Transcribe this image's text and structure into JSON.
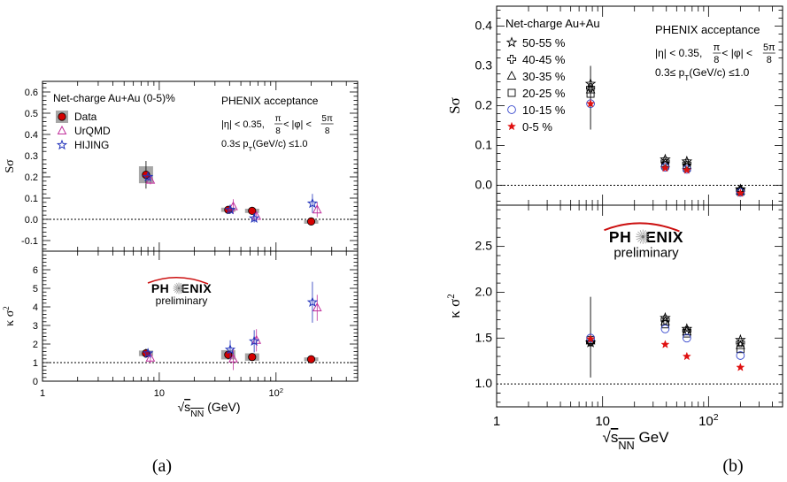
{
  "chart_data": [
    {
      "type": "scatter",
      "panel_label": "(a)",
      "x_scale": "log",
      "xlim": [
        1,
        500
      ],
      "xlabel": {
        "prefix": "√",
        "base": "s",
        "sub": "NN",
        "suffix": " (GeV)"
      },
      "x_tick_labels": [
        {
          "x": 1,
          "label": "1"
        },
        {
          "x": 10,
          "label": "10"
        },
        {
          "x": 100,
          "label": "10",
          "sup": "2"
        }
      ],
      "legend": {
        "title": "Net-charge Au+Au (0-5)%",
        "entries": [
          "Data",
          "UrQMD",
          "HIJING"
        ]
      },
      "acceptance": {
        "title": "PHENIX acceptance",
        "eta_cut": "|η| < 0.35,",
        "phi_cut": {
          "num1": "π",
          "den1": "8",
          "mid": " < |φ| < ",
          "num2": "5π",
          "den2": "8"
        },
        "pt_cut": {
          "pre": "0.3≤ p",
          "sub": "T",
          "post": "(GeV/c) ≤1.0"
        }
      },
      "logo": {
        "text_left": "PH",
        "text_right": "ENIX",
        "subtitle": "preliminary"
      },
      "panels": [
        {
          "id": "ssigma",
          "ylabel": "Sσ",
          "ylim": [
            -0.15,
            0.65
          ],
          "yticks": [
            -0.1,
            0,
            0.1,
            0.2,
            0.3,
            0.4,
            0.5,
            0.6
          ],
          "ytick_labels": [
            "-0.1",
            "0.0",
            "0.1",
            "0.2",
            "0.3",
            "0.4",
            "0.5",
            "0.6"
          ],
          "reference_line": 0,
          "series": [
            {
              "name": "Data",
              "marker": "circle",
              "color": "#d40000",
              "points": [
                {
                  "x": 7.7,
                  "y": 0.21,
                  "err": 0.065,
                  "sys": 0.04
                },
                {
                  "x": 39,
                  "y": 0.045,
                  "err": 0.01,
                  "sys": 0.01
                },
                {
                  "x": 62.4,
                  "y": 0.04,
                  "err": 0.012,
                  "sys": 0.01
                },
                {
                  "x": 200,
                  "y": -0.01,
                  "err": 0.006,
                  "sys": 0.006
                }
              ]
            },
            {
              "name": "UrQMD",
              "marker": "triangle",
              "color": "#c0309c",
              "points": [
                {
                  "x": 8.4,
                  "y": 0.185,
                  "err": 0.02
                },
                {
                  "x": 43,
                  "y": 0.06,
                  "err": 0.035
                },
                {
                  "x": 68,
                  "y": 0.015,
                  "err": 0.025
                },
                {
                  "x": 225,
                  "y": 0.045,
                  "err": 0.035
                }
              ]
            },
            {
              "name": "HIJING",
              "marker": "star",
              "color": "#2233bb",
              "points": [
                {
                  "x": 8.0,
                  "y": 0.2,
                  "err": 0.02
                },
                {
                  "x": 40.5,
                  "y": 0.045,
                  "err": 0.02
                },
                {
                  "x": 65,
                  "y": 0.005,
                  "err": 0.02
                },
                {
                  "x": 205,
                  "y": 0.075,
                  "err": 0.045
                }
              ]
            }
          ]
        },
        {
          "id": "kappasigma2",
          "ylabel": "κ σ²",
          "ylim": [
            0,
            7
          ],
          "yticks": [
            0,
            1,
            2,
            3,
            4,
            5,
            6
          ],
          "ytick_labels": [
            "0",
            "1",
            "2",
            "3",
            "4",
            "5",
            "6"
          ],
          "reference_line": 1,
          "series": [
            {
              "name": "Data",
              "marker": "circle",
              "color": "#d40000",
              "points": [
                {
                  "x": 7.7,
                  "y": 1.5,
                  "err": 0.25,
                  "sys": 0.15
                },
                {
                  "x": 39,
                  "y": 1.42,
                  "err": 0.25,
                  "sys": 0.25
                },
                {
                  "x": 62.4,
                  "y": 1.3,
                  "err": 0.12,
                  "sys": 0.2
                },
                {
                  "x": 200,
                  "y": 1.18,
                  "err": 0.08,
                  "sys": 0.1
                }
              ]
            },
            {
              "name": "UrQMD",
              "marker": "triangle",
              "color": "#c0309c",
              "points": [
                {
                  "x": 8.4,
                  "y": 1.25,
                  "err": 0.3
                },
                {
                  "x": 43,
                  "y": 1.2,
                  "err": 0.6
                },
                {
                  "x": 68,
                  "y": 2.2,
                  "err": 0.6
                },
                {
                  "x": 225,
                  "y": 3.95,
                  "err": 0.7
                }
              ]
            },
            {
              "name": "HIJING",
              "marker": "star",
              "color": "#2233bb",
              "points": [
                {
                  "x": 8.0,
                  "y": 1.5,
                  "err": 0.2
                },
                {
                  "x": 40.5,
                  "y": 1.7,
                  "err": 0.5
                },
                {
                  "x": 65,
                  "y": 2.15,
                  "err": 0.6
                },
                {
                  "x": 205,
                  "y": 4.25,
                  "err": 1.1
                }
              ]
            }
          ]
        }
      ]
    },
    {
      "type": "scatter",
      "panel_label": "(b)",
      "x_scale": "log",
      "xlim": [
        1,
        500
      ],
      "xlabel": {
        "prefix": "√",
        "base": "s",
        "sub": "NN",
        "suffix": " GeV"
      },
      "x_tick_labels": [
        {
          "x": 1,
          "label": "1"
        },
        {
          "x": 10,
          "label": "10"
        },
        {
          "x": 100,
          "label": "10",
          "sup": "2"
        }
      ],
      "legend": {
        "title": "Net-charge Au+Au",
        "entries": [
          "50-55 %",
          "40-45 %",
          "30-35 %",
          "20-25 %",
          "10-15 %",
          "0-5 %"
        ]
      },
      "acceptance": {
        "title": "PHENIX acceptance",
        "eta_cut": "|η| < 0.35,",
        "phi_cut": {
          "num1": "π",
          "den1": "8",
          "mid": " < |φ| < ",
          "num2": "5π",
          "den2": "8"
        },
        "pt_cut": {
          "pre": "0.3≤ p",
          "sub": "T",
          "post": "(GeV/c) ≤1.0"
        }
      },
      "logo": {
        "text_left": "PH",
        "text_right": "ENIX",
        "subtitle": "preliminary"
      },
      "panels": [
        {
          "id": "ssigma",
          "ylabel": "Sσ",
          "ylim": [
            -0.05,
            0.45
          ],
          "yticks": [
            0,
            0.1,
            0.2,
            0.3,
            0.4
          ],
          "ytick_labels": [
            "0.0",
            "0.1",
            "0.2",
            "0.3",
            "0.4"
          ],
          "reference_line": 0,
          "error_bar": {
            "x": 7.7,
            "low": 0.14,
            "high": 0.3
          },
          "series": [
            {
              "name": "50-55 %",
              "marker": "open-star",
              "color": "#000000",
              "values": [
                0.255,
                0.065,
                0.06,
                -0.01
              ]
            },
            {
              "name": "40-45 %",
              "marker": "open-cross",
              "color": "#000000",
              "values": [
                0.245,
                0.06,
                0.055,
                -0.012
              ]
            },
            {
              "name": "30-35 %",
              "marker": "open-triangle",
              "color": "#000000",
              "values": [
                0.24,
                0.055,
                0.05,
                -0.014
              ]
            },
            {
              "name": "20-25 %",
              "marker": "open-square",
              "color": "#000000",
              "values": [
                0.23,
                0.05,
                0.045,
                -0.016
              ]
            },
            {
              "name": "10-15 %",
              "marker": "open-circle",
              "color": "#3344cc",
              "values": [
                0.205,
                0.045,
                0.04,
                -0.018
              ]
            },
            {
              "name": "0-5 %",
              "marker": "filled-star",
              "color": "#e01010",
              "values": [
                0.205,
                0.043,
                0.038,
                -0.02
              ]
            }
          ],
          "x": [
            7.7,
            39,
            62.4,
            200
          ]
        },
        {
          "id": "kappasigma2",
          "ylabel": "κ σ²",
          "ylim": [
            0.75,
            2.95
          ],
          "yticks": [
            1.0,
            1.5,
            2.0,
            2.5
          ],
          "ytick_labels": [
            "1.0",
            "1.5",
            "2.0",
            "2.5"
          ],
          "reference_line": 1,
          "error_bar": {
            "x": 7.7,
            "low": 1.07,
            "high": 1.95
          },
          "series": [
            {
              "name": "50-55 %",
              "marker": "open-star",
              "color": "#000000",
              "values": [
                1.45,
                1.72,
                1.6,
                1.48
              ]
            },
            {
              "name": "40-45 %",
              "marker": "open-cross",
              "color": "#000000",
              "values": [
                1.46,
                1.7,
                1.58,
                1.45
              ]
            },
            {
              "name": "30-35 %",
              "marker": "open-triangle",
              "color": "#000000",
              "values": [
                1.47,
                1.68,
                1.57,
                1.42
              ]
            },
            {
              "name": "20-25 %",
              "marker": "open-square",
              "color": "#000000",
              "values": [
                1.48,
                1.65,
                1.55,
                1.38
              ]
            },
            {
              "name": "10-15 %",
              "marker": "open-circle",
              "color": "#3344cc",
              "values": [
                1.5,
                1.6,
                1.5,
                1.31
              ]
            },
            {
              "name": "0-5 %",
              "marker": "filled-star",
              "color": "#e01010",
              "values": [
                1.49,
                1.43,
                1.3,
                1.18
              ]
            }
          ],
          "x": [
            7.7,
            39,
            62.4,
            200
          ]
        }
      ]
    }
  ]
}
